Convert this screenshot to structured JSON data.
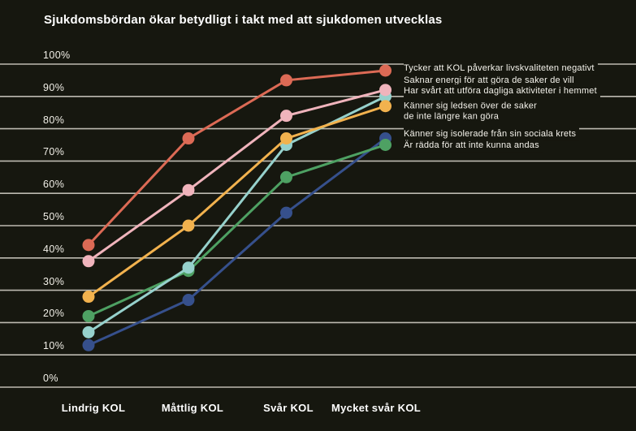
{
  "title": "Sjukdomsbördan ökar betydligt i takt med att sjukdomen utvecklas",
  "colors": {
    "background": "#16170f",
    "gridline": "#bdbab1",
    "text": "#ffffff"
  },
  "chart_data": {
    "type": "line",
    "categories": [
      "Lindrig KOL",
      "Måttlig KOL",
      "Svår KOL",
      "Mycket svår KOL"
    ],
    "series": [
      {
        "name": "Tycker att KOL påverkar livskvaliteten negativt",
        "color": "#dc6a55",
        "values": [
          44,
          77,
          95,
          98
        ]
      },
      {
        "name": "Saknar energi för att göra de saker de vill",
        "color": "#f0b4bc",
        "values": [
          39,
          61,
          84,
          92
        ]
      },
      {
        "name": "Har svårt att utföra dagliga aktiviteter i hemmet",
        "color": "#96d1cc",
        "values": [
          17,
          37,
          75,
          90
        ]
      },
      {
        "name": "Känner sig ledsen över de saker de inte längre kan göra",
        "color": "#f2b24e",
        "values": [
          28,
          50,
          77,
          87
        ]
      },
      {
        "name": "Känner sig isolerade från sin sociala krets",
        "color": "#36508c",
        "values": [
          13,
          27,
          54,
          77
        ]
      },
      {
        "name": "Är rädda för att inte kunna andas",
        "color": "#4ea163",
        "values": [
          22,
          36,
          65,
          75
        ]
      }
    ],
    "xlabel": "",
    "ylabel": "",
    "ylim": [
      0,
      100
    ],
    "ytick_labels": [
      "0%",
      "10%",
      "20%",
      "30%",
      "40%",
      "50%",
      "60%",
      "70%",
      "80%",
      "90%",
      "100%"
    ],
    "grid": true,
    "legend_position": "right"
  },
  "legend": {
    "items": [
      {
        "lines": [
          "Tycker att KOL påverkar livskvaliteten negativt"
        ]
      },
      {
        "lines": [
          "Saknar energi för att göra de saker de vill"
        ]
      },
      {
        "lines": [
          "Har svårt att utföra dagliga aktiviteter i hemmet"
        ]
      },
      {
        "lines": [
          "Känner sig ledsen över de saker",
          "de inte längre kan göra"
        ]
      },
      {
        "lines": [
          "Känner sig isolerade från sin sociala krets"
        ]
      },
      {
        "lines": [
          "Är rädda för att inte kunna andas"
        ]
      }
    ]
  }
}
